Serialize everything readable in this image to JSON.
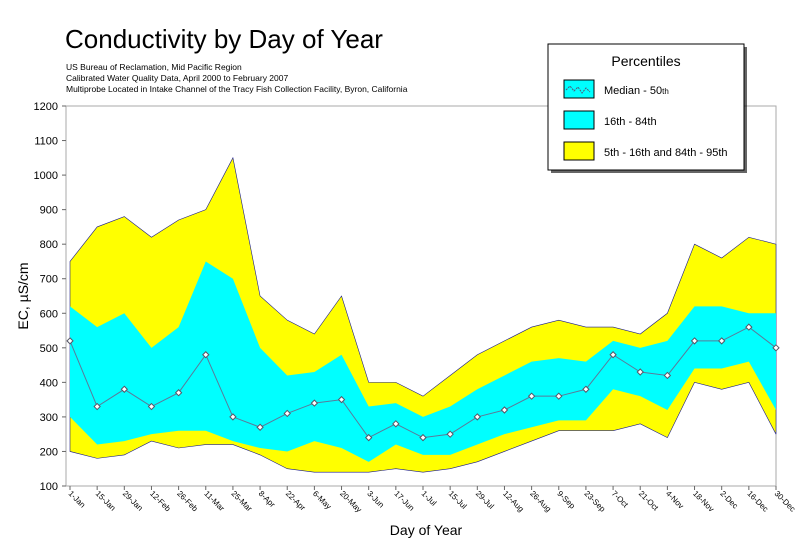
{
  "chart_data": {
    "type": "area",
    "title": "Conductivity by Day of Year",
    "subtitles": [
      "US Bureau of Reclamation, Mid Pacific Region",
      "Calibrated Water Quality Data, April 2000 to February 2007",
      "Multiprobe Located in Intake Channel of the Tracy Fish Collection Facility, Byron, California"
    ],
    "xlabel": "Day of Year",
    "ylabel": "EC, µS/cm",
    "ylim": [
      100,
      1200
    ],
    "yticks": [
      100,
      200,
      300,
      400,
      500,
      600,
      700,
      800,
      900,
      1000,
      1100,
      1200
    ],
    "grid": false,
    "categories": [
      "1-Jan",
      "15-Jan",
      "29-Jan",
      "12-Feb",
      "26-Feb",
      "11-Mar",
      "25-Mar",
      "8-Apr",
      "22-Apr",
      "6-May",
      "20-May",
      "3-Jun",
      "17-Jun",
      "1-Jul",
      "15-Jul",
      "29-Jul",
      "12-Aug",
      "26-Aug",
      "9-Sep",
      "23-Sep",
      "7-Oct",
      "21-Oct",
      "4-Nov",
      "18-Nov",
      "2-Dec",
      "16-Dec",
      "30-Dec"
    ],
    "legend": {
      "title": "Percentiles",
      "placement": "top-right",
      "entries": [
        {
          "label": "Median - 50",
          "sup": "th",
          "color": "#00ffff"
        },
        {
          "label": "16th - 84th",
          "color": "#00ffff"
        },
        {
          "label": "5th - 16th and 84th - 95th",
          "color": "#ffff00"
        }
      ]
    },
    "series": {
      "p95": [
        750,
        850,
        880,
        820,
        870,
        900,
        1050,
        650,
        580,
        540,
        650,
        400,
        400,
        360,
        420,
        480,
        520,
        560,
        580,
        560,
        560,
        540,
        600,
        800,
        760,
        820,
        800
      ],
      "p84": [
        620,
        560,
        600,
        500,
        560,
        750,
        700,
        500,
        420,
        430,
        480,
        330,
        340,
        300,
        330,
        380,
        420,
        460,
        470,
        460,
        520,
        500,
        520,
        620,
        620,
        600,
        600
      ],
      "p50": [
        520,
        330,
        380,
        330,
        370,
        480,
        300,
        270,
        310,
        340,
        350,
        240,
        280,
        240,
        250,
        300,
        320,
        360,
        360,
        380,
        480,
        430,
        420,
        520,
        520,
        560,
        500
      ],
      "p16": [
        300,
        220,
        230,
        250,
        260,
        260,
        230,
        210,
        200,
        230,
        210,
        170,
        220,
        190,
        190,
        220,
        250,
        270,
        290,
        290,
        380,
        360,
        320,
        440,
        440,
        460,
        320
      ],
      "p5": [
        200,
        180,
        190,
        230,
        210,
        220,
        220,
        190,
        150,
        140,
        140,
        140,
        150,
        140,
        150,
        170,
        200,
        230,
        260,
        260,
        260,
        280,
        240,
        400,
        380,
        400,
        250
      ]
    },
    "colors": {
      "outer": "#ffff00",
      "inner": "#00ffff",
      "median": "#5a7a9a",
      "edge": "#1a1a8c"
    }
  }
}
